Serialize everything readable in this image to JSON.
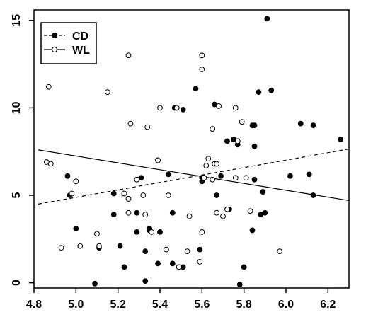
{
  "chart_data": {
    "type": "scatter",
    "title": "",
    "xlabel": "",
    "ylabel": "",
    "xlim": [
      4.8,
      6.3
    ],
    "ylim": [
      -0.3,
      15.6
    ],
    "x_ticks": [
      4.8,
      5.0,
      5.2,
      5.4,
      5.6,
      5.8,
      6.0,
      6.2
    ],
    "x_tick_labels": [
      "4.8",
      "5.0",
      "5.2",
      "5.4",
      "5.6",
      "5.8",
      "6.0",
      "6.2"
    ],
    "y_ticks": [
      0,
      5,
      10,
      15
    ],
    "y_tick_labels": [
      "0",
      "5",
      "10",
      "15"
    ],
    "grid": false,
    "legend": {
      "position": "top-left",
      "entries": [
        {
          "label": "CD",
          "marker": "filled-circle",
          "line": "dashed"
        },
        {
          "label": "WL",
          "marker": "open-circle",
          "line": "solid"
        }
      ]
    },
    "series": [
      {
        "name": "CD",
        "marker": "filled",
        "color": "#000000",
        "fit_line": {
          "style": "dashed",
          "x": [
            4.82,
            6.3
          ],
          "y": [
            4.5,
            7.65
          ]
        },
        "points": [
          [
            5.09,
            -0.05
          ],
          [
            5.11,
            2.0
          ],
          [
            5.21,
            2.1
          ],
          [
            5.23,
            0.9
          ],
          [
            5.18,
            3.9
          ],
          [
            5.18,
            5.1
          ],
          [
            5.23,
            5.1
          ],
          [
            5.29,
            4.0
          ],
          [
            5.29,
            2.9
          ],
          [
            5.31,
            6.0
          ],
          [
            5.33,
            0.1
          ],
          [
            5.33,
            1.8
          ],
          [
            5.35,
            3.1
          ],
          [
            5.35,
            3.0
          ],
          [
            5.39,
            1.1
          ],
          [
            5.39,
            7.0
          ],
          [
            5.4,
            2.9
          ],
          [
            5.44,
            6.2
          ],
          [
            5.46,
            4.0
          ],
          [
            5.46,
            1.1
          ],
          [
            5.47,
            10.0
          ],
          [
            5.51,
            9.9
          ],
          [
            5.51,
            0.9
          ],
          [
            5.57,
            11.1
          ],
          [
            5.59,
            1.9
          ],
          [
            5.6,
            6.0
          ],
          [
            5.6,
            5.8
          ],
          [
            5.66,
            10.2
          ],
          [
            5.67,
            5.0
          ],
          [
            5.69,
            6.1
          ],
          [
            5.72,
            8.1
          ],
          [
            5.73,
            4.2
          ],
          [
            5.75,
            8.2
          ],
          [
            5.77,
            7.9
          ],
          [
            5.78,
            -0.1
          ],
          [
            5.8,
            0.9
          ],
          [
            5.84,
            9.0
          ],
          [
            5.84,
            3.0
          ],
          [
            5.85,
            5.9
          ],
          [
            5.85,
            9.0
          ],
          [
            5.85,
            7.8
          ],
          [
            5.87,
            10.9
          ],
          [
            5.88,
            3.9
          ],
          [
            5.89,
            5.2
          ],
          [
            5.9,
            4.0
          ],
          [
            5.91,
            15.1
          ],
          [
            5.93,
            11.0
          ],
          [
            6.02,
            6.1
          ],
          [
            6.07,
            9.1
          ],
          [
            6.11,
            6.2
          ],
          [
            6.13,
            9.0
          ],
          [
            6.13,
            5.0
          ],
          [
            6.26,
            8.2
          ],
          [
            4.96,
            6.1
          ],
          [
            4.97,
            5.0
          ],
          [
            5.0,
            3.1
          ]
        ]
      },
      {
        "name": "WL",
        "marker": "open",
        "color": "#000000",
        "fit_line": {
          "style": "solid",
          "x": [
            4.82,
            6.3
          ],
          "y": [
            7.6,
            4.7
          ]
        },
        "points": [
          [
            4.86,
            6.9
          ],
          [
            4.87,
            11.2
          ],
          [
            4.88,
            6.8
          ],
          [
            4.93,
            2.0
          ],
          [
            4.98,
            5.1
          ],
          [
            5.0,
            5.8
          ],
          [
            5.02,
            2.1
          ],
          [
            5.1,
            2.8
          ],
          [
            5.11,
            2.1
          ],
          [
            5.15,
            10.9
          ],
          [
            5.23,
            5.1
          ],
          [
            5.25,
            13.0
          ],
          [
            5.25,
            4.8
          ],
          [
            5.25,
            4.0
          ],
          [
            5.26,
            9.1
          ],
          [
            5.29,
            5.9
          ],
          [
            5.32,
            5.0
          ],
          [
            5.33,
            3.9
          ],
          [
            5.34,
            8.9
          ],
          [
            5.36,
            2.9
          ],
          [
            5.39,
            7.0
          ],
          [
            5.4,
            10.0
          ],
          [
            5.43,
            1.9
          ],
          [
            5.44,
            5.0
          ],
          [
            5.48,
            10.0
          ],
          [
            5.49,
            0.9
          ],
          [
            5.53,
            1.8
          ],
          [
            5.54,
            3.8
          ],
          [
            5.59,
            1.2
          ],
          [
            5.6,
            2.9
          ],
          [
            5.6,
            12.2
          ],
          [
            5.6,
            13.0
          ],
          [
            5.61,
            6.0
          ],
          [
            5.62,
            6.7
          ],
          [
            5.63,
            7.1
          ],
          [
            5.65,
            8.8
          ],
          [
            5.65,
            5.9
          ],
          [
            5.66,
            6.8
          ],
          [
            5.67,
            6.8
          ],
          [
            5.67,
            4.0
          ],
          [
            5.68,
            10.1
          ],
          [
            5.7,
            3.8
          ],
          [
            5.72,
            4.2
          ],
          [
            5.76,
            6.0
          ],
          [
            5.76,
            10.0
          ],
          [
            5.77,
            8.1
          ],
          [
            5.79,
            9.2
          ],
          [
            5.81,
            6.0
          ],
          [
            5.83,
            4.1
          ],
          [
            5.97,
            1.8
          ]
        ]
      }
    ]
  }
}
